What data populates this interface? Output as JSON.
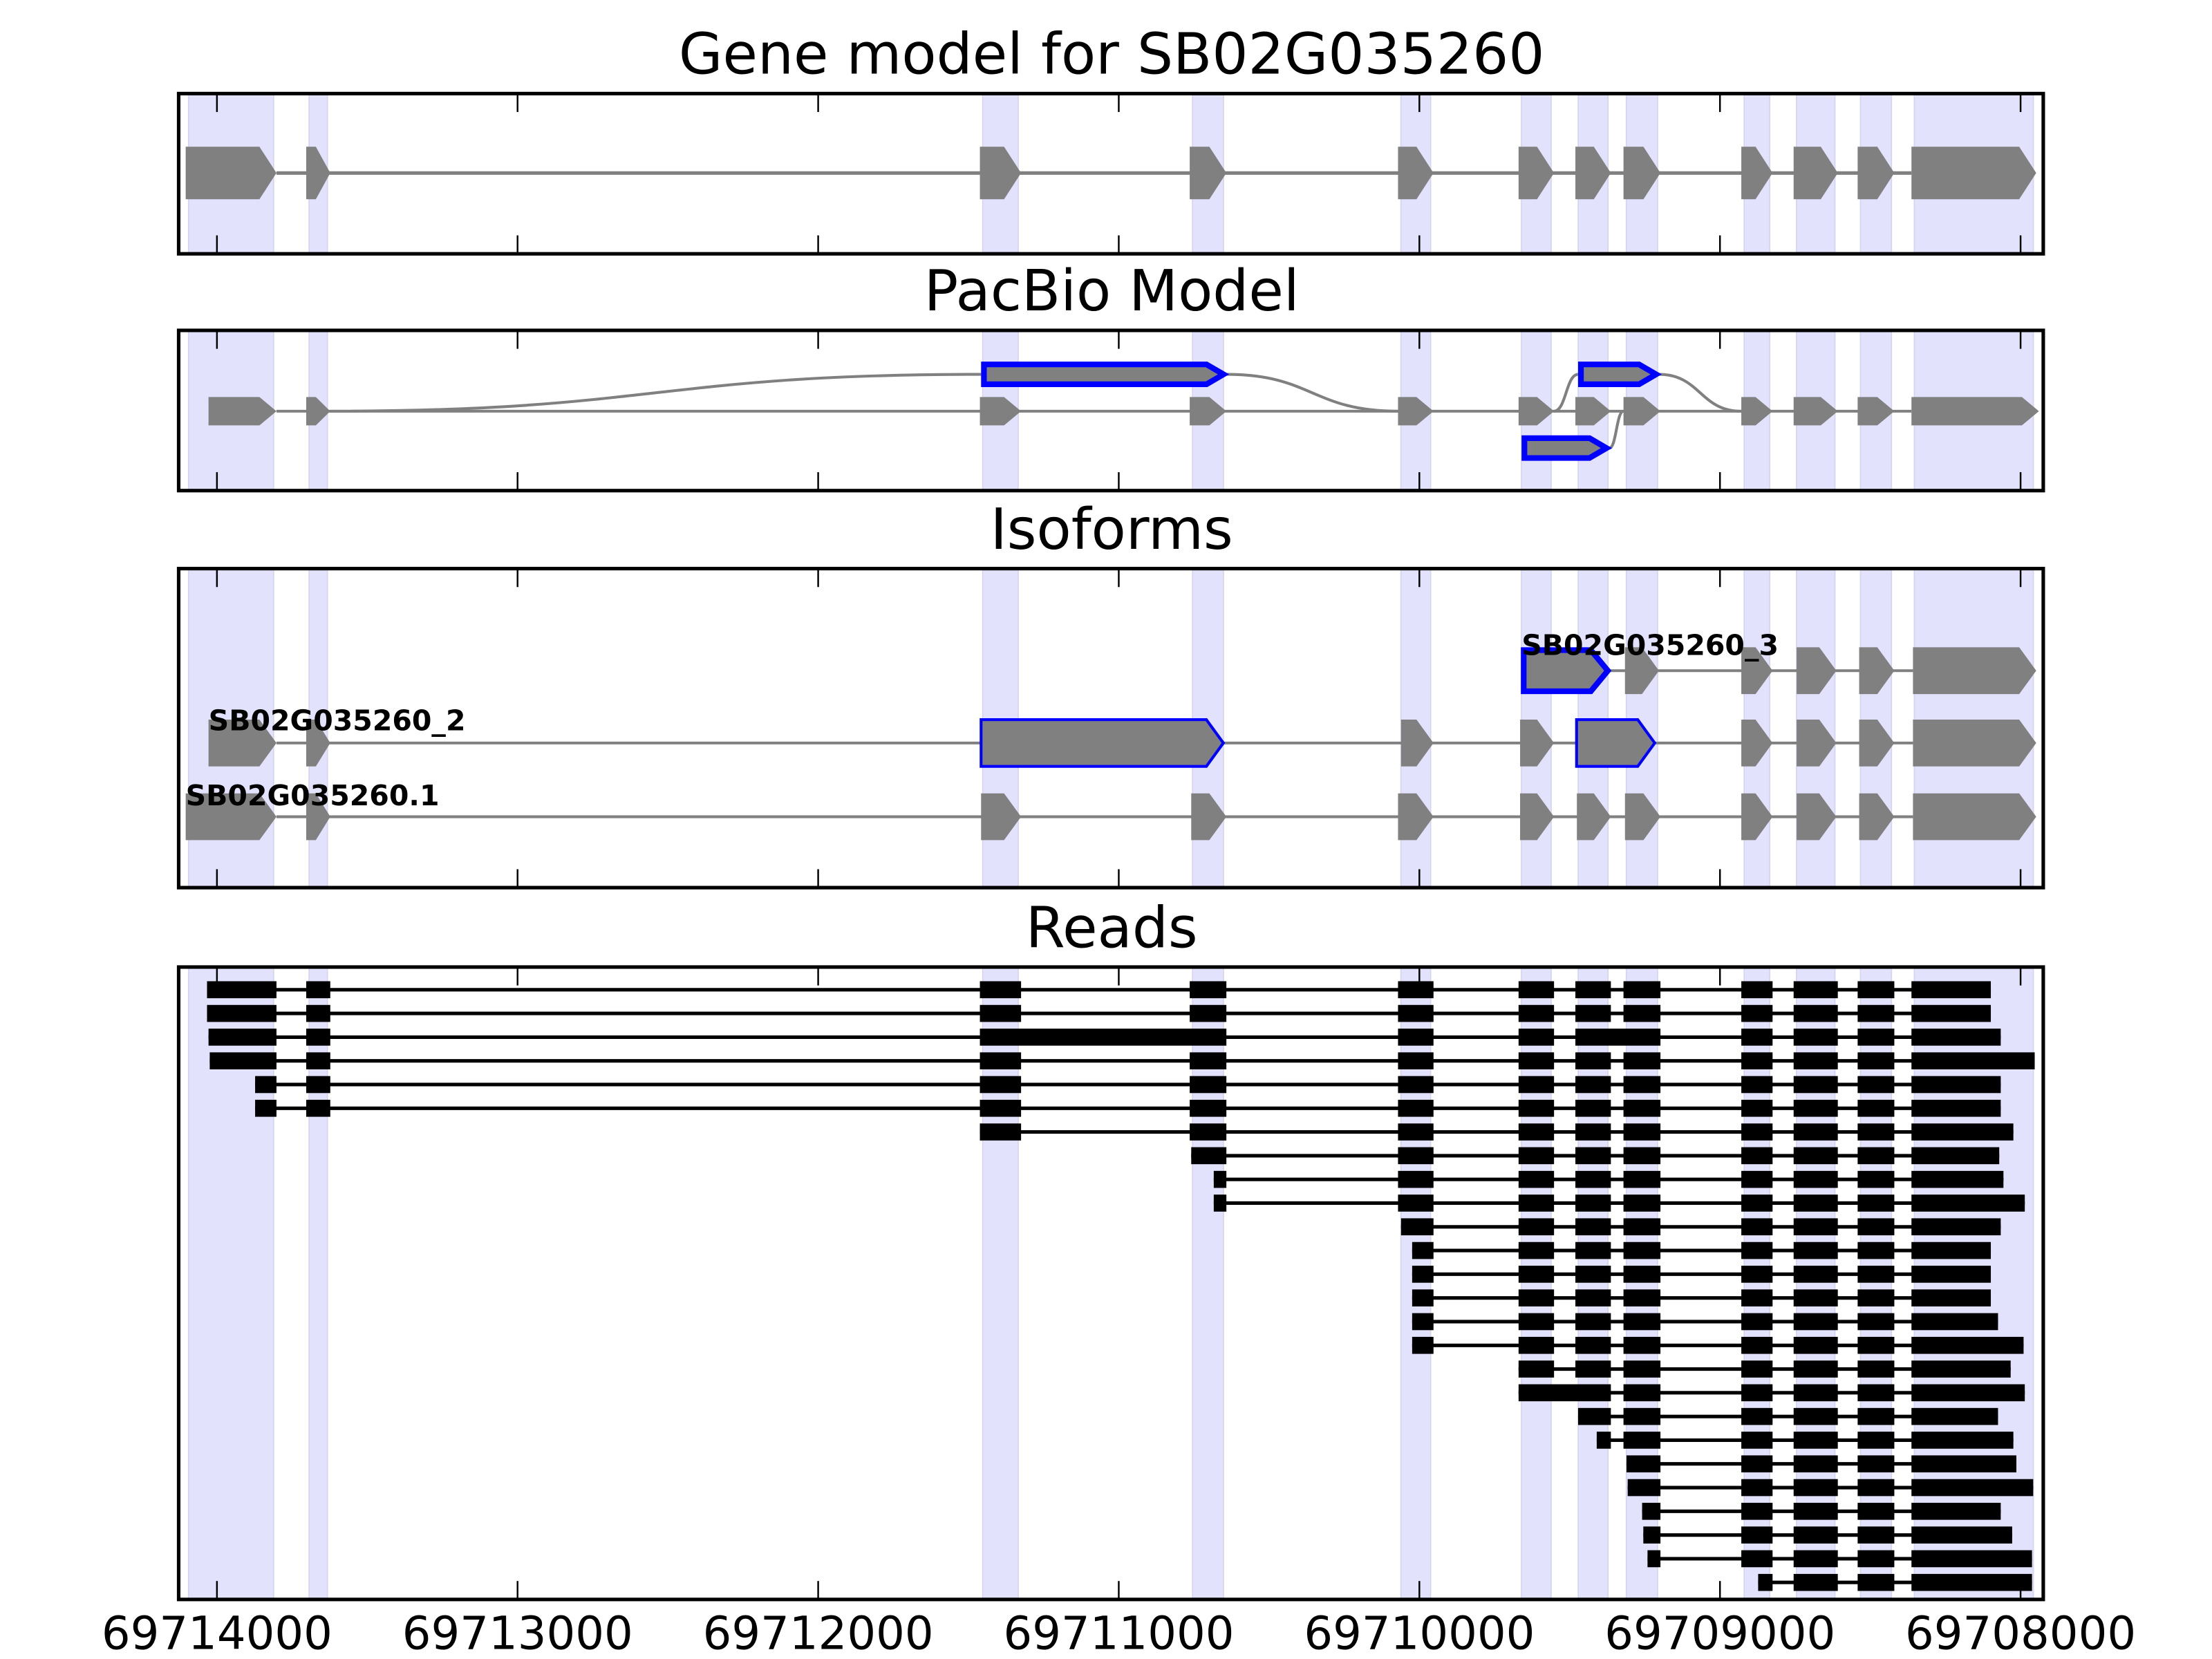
{
  "chart_data": {
    "type": "gene-track",
    "titles": {
      "gene_model": "Gene model for SB02G035260",
      "pacbio": "PacBio Model",
      "isoforms": "Isoforms",
      "reads": "Reads"
    },
    "xaxis": {
      "range": [
        69714130,
        69707920
      ],
      "reversed": true,
      "ticks": [
        69714000,
        69713000,
        69712000,
        69711000,
        69710000,
        69709000,
        69708000
      ],
      "tick_labels": [
        "69714000",
        "69713000",
        "69712000",
        "69711000",
        "69710000",
        "69709000",
        "69708000"
      ]
    },
    "colors": {
      "exon": "#808080",
      "highlight": "#0000ff",
      "shade": "#e2e2fd",
      "read": "#000000"
    },
    "exons": [
      [
        69714104,
        69713802
      ],
      [
        69713703,
        69713623
      ],
      [
        69711462,
        69711325
      ],
      [
        69710764,
        69710642
      ],
      [
        69710071,
        69709953
      ],
      [
        69709670,
        69709552
      ],
      [
        69709481,
        69709363
      ],
      [
        69709321,
        69709198
      ],
      [
        69708929,
        69708825
      ],
      [
        69708755,
        69708608
      ],
      [
        69708542,
        69708420
      ],
      [
        69708363,
        69707948
      ]
    ],
    "pacbio": {
      "main": {
        "start": 69714028,
        "end": 69707939
      },
      "alt_exons": [
        {
          "range": [
            69711458,
            69710642
          ],
          "row": "up",
          "from_exon": 1,
          "to_exon": 4
        },
        {
          "range": [
            69709472,
            69709203
          ],
          "row": "up",
          "from_exon": 5,
          "to_exon": 8
        },
        {
          "range": [
            69709660,
            69709368
          ],
          "row": "down",
          "from_exon": null,
          "to_exon": 7
        }
      ]
    },
    "isoforms": [
      {
        "name": "SB02G035260_3",
        "blocks": [
          [
            69709660,
            69709373,
            "hl"
          ],
          [
            69709316,
            69709203
          ],
          [
            69708929,
            69708825
          ],
          [
            69708745,
            69708613
          ],
          [
            69708537,
            69708420
          ],
          [
            69708358,
            69707948
          ]
        ]
      },
      {
        "name": "SB02G035260_2",
        "blocks": [
          [
            69714028,
            69713802
          ],
          [
            69713703,
            69713623
          ],
          [
            69711458,
            69710652,
            "hl"
          ],
          [
            69710061,
            69709953
          ],
          [
            69709665,
            69709552
          ],
          [
            69709477,
            69709217,
            "hl"
          ],
          [
            69708929,
            69708825
          ],
          [
            69708745,
            69708613
          ],
          [
            69708537,
            69708420
          ],
          [
            69708358,
            69707948
          ]
        ]
      },
      {
        "name": "SB02G035260.1",
        "blocks": [
          [
            69714104,
            69713802
          ],
          [
            69713703,
            69713623
          ],
          [
            69711458,
            69711325
          ],
          [
            69710759,
            69710642
          ],
          [
            69710071,
            69709953
          ],
          [
            69709665,
            69709552
          ],
          [
            69709476,
            69709363
          ],
          [
            69709316,
            69709198
          ],
          [
            69708929,
            69708825
          ],
          [
            69708745,
            69708613
          ],
          [
            69708537,
            69708420
          ],
          [
            69708358,
            69707948
          ]
        ]
      }
    ],
    "reads": [
      {
        "s": 69714033,
        "e": 69708099,
        "ex": [
          0,
          11
        ],
        "merge": []
      },
      {
        "s": 69714033,
        "e": 69708099,
        "ex": [
          0,
          11
        ],
        "merge": []
      },
      {
        "s": 69714028,
        "e": 69708066,
        "ex": [
          0,
          11
        ],
        "merge": [
          [
            2,
            3
          ],
          [
            6,
            7
          ]
        ]
      },
      {
        "s": 69714024,
        "e": 69707953,
        "ex": [
          0,
          11
        ],
        "merge": []
      },
      {
        "s": 69713873,
        "e": 69708066,
        "ex": [
          0,
          11
        ],
        "merge": []
      },
      {
        "s": 69713873,
        "e": 69708066,
        "ex": [
          0,
          11
        ],
        "merge": []
      },
      {
        "s": 69711462,
        "e": 69708024,
        "ex": [
          2,
          11
        ],
        "merge": []
      },
      {
        "s": 69710759,
        "e": 69708071,
        "ex": [
          3,
          11
        ],
        "merge": []
      },
      {
        "s": 69710684,
        "e": 69708057,
        "ex": [
          3,
          11
        ],
        "merge": []
      },
      {
        "s": 69710684,
        "e": 69707986,
        "ex": [
          3,
          11
        ],
        "merge": []
      },
      {
        "s": 69710061,
        "e": 69708066,
        "ex": [
          4,
          11
        ],
        "merge": []
      },
      {
        "s": 69710024,
        "e": 69708099,
        "ex": [
          4,
          11
        ],
        "merge": []
      },
      {
        "s": 69710024,
        "e": 69708099,
        "ex": [
          4,
          11
        ],
        "merge": []
      },
      {
        "s": 69710024,
        "e": 69708099,
        "ex": [
          4,
          11
        ],
        "merge": []
      },
      {
        "s": 69710024,
        "e": 69708075,
        "ex": [
          4,
          11
        ],
        "merge": []
      },
      {
        "s": 69710024,
        "e": 69707990,
        "ex": [
          4,
          11
        ],
        "merge": []
      },
      {
        "s": 69709670,
        "e": 69708033,
        "ex": [
          5,
          11
        ],
        "merge": []
      },
      {
        "s": 69709670,
        "e": 69707986,
        "ex": [
          5,
          11
        ],
        "merge": [
          [
            5,
            6
          ]
        ]
      },
      {
        "s": 69709472,
        "e": 69708075,
        "ex": [
          6,
          11
        ],
        "merge": []
      },
      {
        "s": 69709410,
        "e": 69708024,
        "ex": [
          6,
          11
        ],
        "merge": []
      },
      {
        "s": 69709311,
        "e": 69708014,
        "ex": [
          7,
          11
        ],
        "merge": []
      },
      {
        "s": 69709307,
        "e": 69707958,
        "ex": [
          7,
          11
        ],
        "merge": []
      },
      {
        "s": 69709259,
        "e": 69708066,
        "ex": [
          7,
          11
        ],
        "merge": []
      },
      {
        "s": 69709255,
        "e": 69708028,
        "ex": [
          7,
          11
        ],
        "merge": []
      },
      {
        "s": 69709241,
        "e": 69707962,
        "ex": [
          7,
          11
        ],
        "merge": []
      },
      {
        "s": 69708873,
        "e": 69707962,
        "ex": [
          8,
          11
        ],
        "merge": []
      }
    ]
  }
}
